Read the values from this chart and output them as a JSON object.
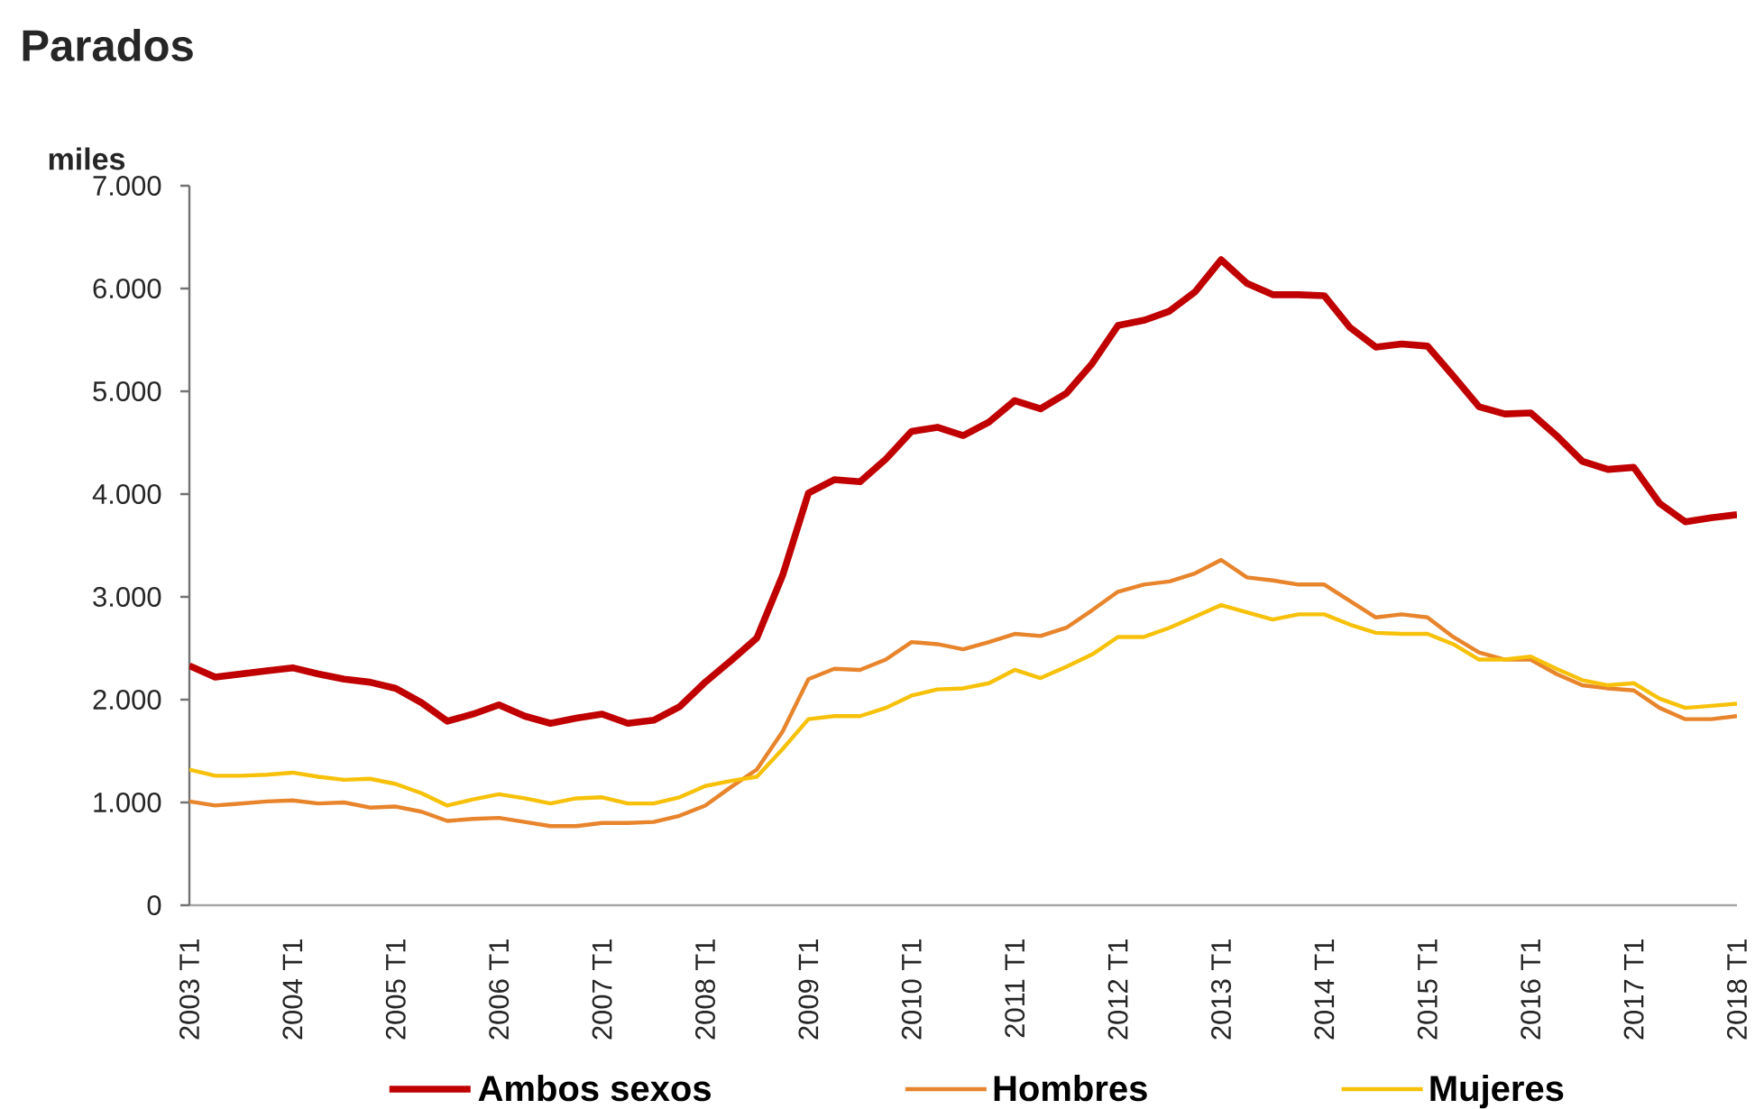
{
  "chart_data": {
    "type": "line",
    "title": "Parados",
    "ylabel": "miles",
    "categories": [
      "2003 T1",
      null,
      null,
      null,
      "2004 T1",
      null,
      null,
      null,
      "2005 T1",
      null,
      null,
      null,
      "2006 T1",
      null,
      null,
      null,
      "2007 T1",
      null,
      null,
      null,
      "2008 T1",
      null,
      null,
      null,
      "2009 T1",
      null,
      null,
      null,
      "2010 T1",
      null,
      null,
      null,
      "2011 T1",
      null,
      null,
      null,
      "2012 T1",
      null,
      null,
      null,
      "2013 T1",
      null,
      null,
      null,
      "2014 T1",
      null,
      null,
      null,
      "2015 T1",
      null,
      null,
      null,
      "2016 T1",
      null,
      null,
      null,
      "2017 T1",
      null,
      null,
      null,
      "2018 T1"
    ],
    "series": [
      {
        "name": "Ambos sexos",
        "color": "#c00000",
        "values": [
          2330,
          2220,
          2250,
          2280,
          2310,
          2250,
          2200,
          2170,
          2110,
          1970,
          1790,
          1860,
          1950,
          1840,
          1770,
          1820,
          1860,
          1770,
          1800,
          1930,
          2170,
          2380,
          2600,
          3210,
          4010,
          4140,
          4120,
          4340,
          4610,
          4650,
          4570,
          4700,
          4910,
          4830,
          4980,
          5270,
          5640,
          5690,
          5780,
          5970,
          6280,
          6050,
          5940,
          5940,
          5930,
          5620,
          5430,
          5460,
          5440,
          5150,
          4850,
          4780,
          4790,
          4570,
          4320,
          4240,
          4260,
          3910,
          3730,
          3770,
          3800
        ]
      },
      {
        "name": "Hombres",
        "color": "#e8842c",
        "values": [
          1010,
          970,
          990,
          1010,
          1020,
          990,
          1000,
          950,
          960,
          910,
          820,
          840,
          850,
          810,
          770,
          770,
          800,
          800,
          810,
          870,
          970,
          1150,
          1320,
          1690,
          2200,
          2300,
          2290,
          2390,
          2560,
          2540,
          2490,
          2560,
          2640,
          2620,
          2700,
          2870,
          3050,
          3120,
          3150,
          3230,
          3360,
          3190,
          3160,
          3120,
          3120,
          2960,
          2800,
          2830,
          2800,
          2610,
          2460,
          2390,
          2390,
          2250,
          2140,
          2110,
          2090,
          1920,
          1810,
          1810,
          1840
        ]
      },
      {
        "name": "Mujeres",
        "color": "#f7c10a",
        "values": [
          1320,
          1260,
          1260,
          1270,
          1290,
          1250,
          1220,
          1230,
          1180,
          1090,
          970,
          1030,
          1080,
          1040,
          990,
          1040,
          1050,
          990,
          990,
          1050,
          1160,
          1210,
          1250,
          1520,
          1810,
          1840,
          1840,
          1920,
          2040,
          2100,
          2110,
          2160,
          2290,
          2210,
          2320,
          2440,
          2610,
          2610,
          2700,
          2810,
          2920,
          2850,
          2780,
          2830,
          2830,
          2730,
          2650,
          2640,
          2640,
          2540,
          2390,
          2390,
          2420,
          2300,
          2190,
          2140,
          2160,
          2010,
          1920,
          1940,
          1960
        ]
      }
    ],
    "ylim": [
      0,
      7000
    ],
    "yticks": [
      0,
      {
        "value": 1000,
        "label": "1.000"
      },
      {
        "value": 2000,
        "label": "2.000"
      },
      {
        "value": 3000,
        "label": "3.000"
      },
      {
        "value": 4000,
        "label": "4.000"
      },
      {
        "value": 5000,
        "label": "5.000"
      },
      {
        "value": 6000,
        "label": "6.000"
      },
      {
        "value": 7000,
        "label": "7.000"
      }
    ],
    "legend": "bottom",
    "line_style": "solid"
  }
}
